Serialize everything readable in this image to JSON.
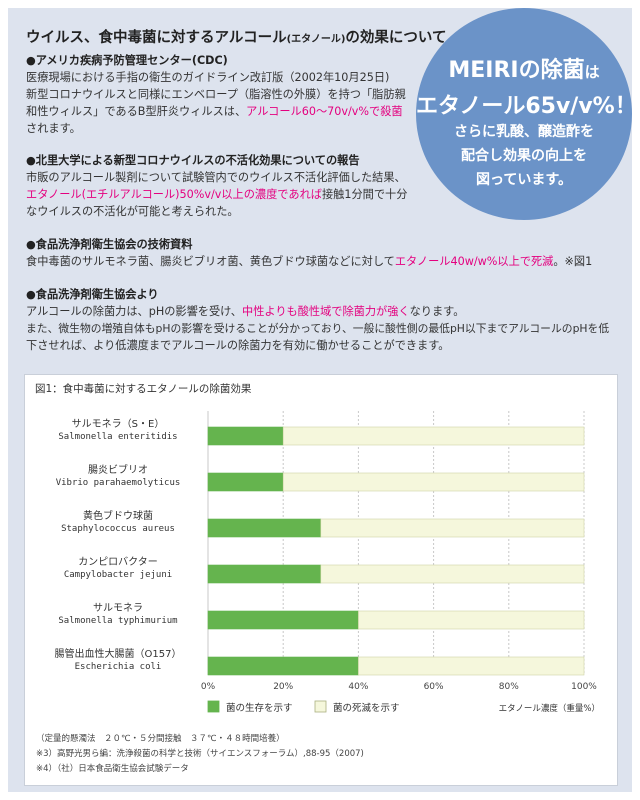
{
  "colors": {
    "accent": "#e4007f",
    "circle": "#6b93c8",
    "live": "#65b44e",
    "dead": "#f5f7dc",
    "panel": "#dde3ee"
  },
  "heading": {
    "main": "ウイルス、食中毒菌に対するアルコール",
    "small": "(エタノール)",
    "tail": "の効果について"
  },
  "sections": [
    {
      "head": "●アメリカ疾病予防管理センター(CDC)",
      "lines": [
        "医療現場における手指の衛生のガイドライン改訂版（2002年10月25日)",
        "新型コロナウイルスと同様にエンベロープ（脂溶性の外膜）を持つ「脂肪親",
        "和性ウィルス」であるB型肝炎ウィルスは、"
      ],
      "pink": "アルコール60～70v/v%で殺菌",
      "tail": "されます。"
    },
    {
      "head": "●北里大学による新型コロナウイルスの不活化効果についての報告",
      "line1": "市販のアルコール製剤について試験管内でのウイルス不活化評価した結果、",
      "pink": "エタノール(エチルアルコール)50%v/v以上の濃度であれば",
      "tail1": "接触1分間で十分",
      "tail2": "なウイルスの不活化が可能と考えられた。"
    },
    {
      "head": "●食品洗浄剤衛生協会の技術資料",
      "pre": "食中毒菌のサルモネラ菌、腸炎ビブリオ菌、黄色ブドウ球菌などに対して",
      "pink": "エタノール40w/w%以上で死滅",
      "tail": "。※図1"
    },
    {
      "head": "●食品洗浄剤衛生協会より",
      "pre": "アルコールの除菌力は、pHの影響を受け、",
      "pink": "中性よりも酸性域で除菌力が強く",
      "tail": "なります。",
      "line2": "また、微生物の増殖自体もpHの影響を受けることが分かっており、一般に酸性側の最低pH以下までアルコールのpHを低",
      "line3": "下させれば、より低濃度までアルコールの除菌力を有効に働かせることができます。"
    }
  ],
  "circle": {
    "line1": "MEIRIの除菌",
    "line1_small": "は",
    "line2": "エタノール65v/v%！",
    "line3": "さらに乳酸、醸造酢を",
    "line4": "配合し効果の向上を",
    "line5": "図っています。"
  },
  "chart_data": {
    "type": "bar",
    "orientation": "horizontal",
    "stacked": true,
    "title": "図1：食中毒菌に対するエタノールの除菌効果",
    "categories": [
      {
        "name": "サルモネラ（S・E）",
        "sci": "Salmonella enteritidis"
      },
      {
        "name": "腸炎ビブリオ",
        "sci": "Vibrio parahaemolyticus"
      },
      {
        "name": "黄色ブドウ球菌",
        "sci": "Staphylococcus aureus"
      },
      {
        "name": "カンピロバクター",
        "sci": "Campylobacter jejuni"
      },
      {
        "name": "サルモネラ",
        "sci": "Salmonella typhimurium"
      },
      {
        "name": "腸管出血性大腸菌（O157）",
        "sci": "Escherichia coli"
      }
    ],
    "series": [
      {
        "name": "菌の生存を示す",
        "values": [
          20,
          20,
          30,
          30,
          40,
          40
        ]
      },
      {
        "name": "菌の死滅を示す",
        "values": [
          80,
          80,
          70,
          70,
          60,
          60
        ]
      }
    ],
    "xlim": [
      0,
      100
    ],
    "xticks": [
      "0%",
      "20%",
      "40%",
      "60%",
      "80%",
      "100%"
    ],
    "xlabel": "エタノール濃度（重量%）",
    "grid": true,
    "legend_position": "bottom"
  },
  "notes": [
    "（定量的懸濁法　２０℃・５分間接触　３７℃・４８時間培養）",
    "※3）高野光男ら編：洗浄殺菌の科学と技術（サイエンスフォーラム）,88-95（2007)",
    "※4）（社）日本食品衛生協会試験データ"
  ]
}
